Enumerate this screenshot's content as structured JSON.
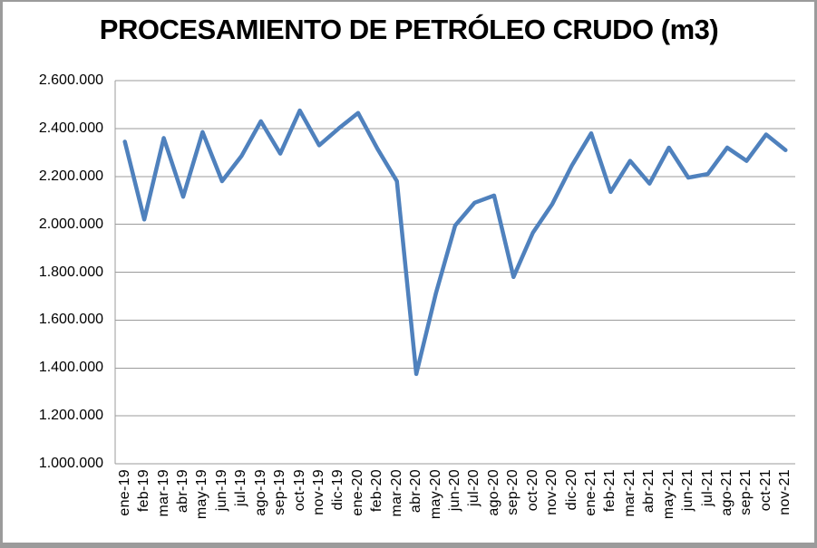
{
  "chart": {
    "line_color": "#4F81BD",
    "gridline_color": "#9b9b9b",
    "axis_color": "#9b9b9b",
    "background_color": "#ffffff"
  },
  "chart_data": {
    "type": "line",
    "title": "PROCESAMIENTO DE PETRÓLEO CRUDO (m3)",
    "xlabel": "",
    "ylabel": "",
    "legend": false,
    "grid": true,
    "ylim": [
      1000000,
      2600000
    ],
    "y_tick_interval": 200000,
    "y_tick_labels": [
      "2.600.000",
      "2.400.000",
      "2.200.000",
      "2.000.000",
      "1.800.000",
      "1.600.000",
      "1.400.000",
      "1.200.000",
      "1.000.000"
    ],
    "categories": [
      "ene-19",
      "feb-19",
      "mar-19",
      "abr-19",
      "may-19",
      "jun-19",
      "jul-19",
      "ago-19",
      "sep-19",
      "oct-19",
      "nov-19",
      "dic-19",
      "ene-20",
      "feb-20",
      "mar-20",
      "abr-20",
      "may-20",
      "jun-20",
      "jul-20",
      "ago-20",
      "sep-20",
      "oct-20",
      "nov-20",
      "dic-20",
      "ene-21",
      "feb-21",
      "mar-21",
      "abr-21",
      "may-21",
      "jun-21",
      "jul-21",
      "ago-21",
      "sep-21",
      "oct-21",
      "nov-21"
    ],
    "values": [
      2345000,
      2020000,
      2360000,
      2115000,
      2385000,
      2180000,
      2285000,
      2430000,
      2295000,
      2475000,
      2330000,
      2400000,
      2465000,
      2315000,
      2180000,
      1375000,
      1710000,
      1995000,
      2090000,
      2120000,
      1780000,
      1965000,
      2085000,
      2245000,
      2380000,
      2135000,
      2265000,
      2170000,
      2320000,
      2195000,
      2210000,
      2320000,
      2265000,
      2375000,
      2310000
    ]
  }
}
